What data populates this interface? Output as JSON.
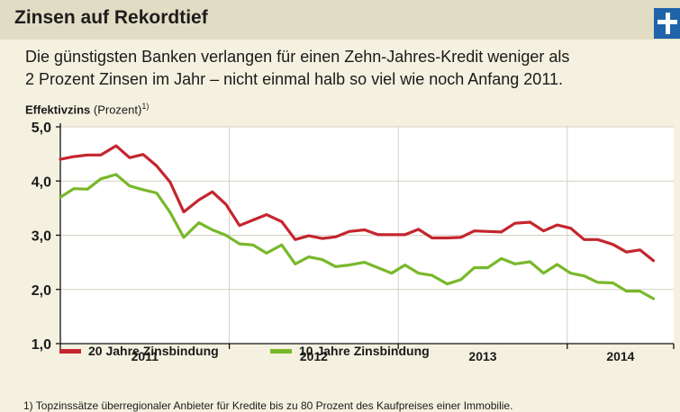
{
  "title": "Zinsen auf Rekordtief",
  "subtitle_line1": "Die günstigsten Banken verlangen für einen Zehn-Jahres-Kredit weniger als",
  "subtitle_line2": "2 Prozent Zinsen im Jahr – nicht einmal halb so viel wie noch Anfang 2011.",
  "footnote": "1) Topzinssätze überregionaler Anbieter für Kredite bis zu 80 Prozent des Kaufpreises einer Immobilie.",
  "logo_icon": "plus-icon",
  "chart_data": {
    "type": "line",
    "ylabel_bold": "Effektivzins",
    "ylabel_rest": "(Prozent)",
    "ylabel_note": "1)",
    "ylim": [
      1.0,
      5.0
    ],
    "yticks": [
      "5,0",
      "4,0",
      "3,0",
      "2,0",
      "1,0"
    ],
    "ytick_values": [
      5,
      4,
      3,
      2,
      1
    ],
    "year_labels": [
      "2011",
      "2012",
      "2013",
      "2014"
    ],
    "x_start": 2011.0,
    "x_end": 2014.63,
    "year_boundaries": [
      2012,
      2013,
      2014
    ],
    "grid": true,
    "series": [
      {
        "name": "20 Jahre Zinsbindung",
        "color": "#c4262e",
        "points": [
          [
            2011.0,
            4.4
          ],
          [
            2011.08,
            4.45
          ],
          [
            2011.16,
            4.48
          ],
          [
            2011.24,
            4.48
          ],
          [
            2011.33,
            4.65
          ],
          [
            2011.41,
            4.43
          ],
          [
            2011.49,
            4.49
          ],
          [
            2011.57,
            4.28
          ],
          [
            2011.65,
            3.98
          ],
          [
            2011.73,
            3.43
          ],
          [
            2011.82,
            3.65
          ],
          [
            2011.9,
            3.8
          ],
          [
            2011.98,
            3.57
          ],
          [
            2012.06,
            3.18
          ],
          [
            2012.14,
            3.28
          ],
          [
            2012.22,
            3.38
          ],
          [
            2012.31,
            3.25
          ],
          [
            2012.39,
            2.92
          ],
          [
            2012.47,
            2.99
          ],
          [
            2012.55,
            2.94
          ],
          [
            2012.63,
            2.97
          ],
          [
            2012.71,
            3.07
          ],
          [
            2012.8,
            3.1
          ],
          [
            2012.88,
            3.01
          ],
          [
            2012.96,
            3.01
          ],
          [
            2013.04,
            3.01
          ],
          [
            2013.12,
            3.11
          ],
          [
            2013.2,
            2.95
          ],
          [
            2013.29,
            2.95
          ],
          [
            2013.37,
            2.96
          ],
          [
            2013.45,
            3.08
          ],
          [
            2013.53,
            3.07
          ],
          [
            2013.61,
            3.06
          ],
          [
            2013.69,
            3.22
          ],
          [
            2013.78,
            3.24
          ],
          [
            2013.86,
            3.08
          ],
          [
            2013.94,
            3.19
          ],
          [
            2014.02,
            3.13
          ],
          [
            2014.1,
            2.92
          ],
          [
            2014.18,
            2.92
          ],
          [
            2014.27,
            2.83
          ],
          [
            2014.35,
            2.69
          ],
          [
            2014.43,
            2.73
          ],
          [
            2014.51,
            2.53
          ]
        ]
      },
      {
        "name": "10 Jahre Zinsbindung",
        "color": "#78b82a",
        "points": [
          [
            2011.0,
            3.7
          ],
          [
            2011.08,
            3.86
          ],
          [
            2011.16,
            3.85
          ],
          [
            2011.24,
            4.04
          ],
          [
            2011.33,
            4.12
          ],
          [
            2011.41,
            3.91
          ],
          [
            2011.49,
            3.84
          ],
          [
            2011.57,
            3.78
          ],
          [
            2011.65,
            3.42
          ],
          [
            2011.73,
            2.96
          ],
          [
            2011.82,
            3.23
          ],
          [
            2011.9,
            3.1
          ],
          [
            2011.98,
            3.0
          ],
          [
            2012.06,
            2.84
          ],
          [
            2012.14,
            2.82
          ],
          [
            2012.22,
            2.67
          ],
          [
            2012.31,
            2.82
          ],
          [
            2012.39,
            2.47
          ],
          [
            2012.47,
            2.6
          ],
          [
            2012.55,
            2.55
          ],
          [
            2012.63,
            2.42
          ],
          [
            2012.71,
            2.45
          ],
          [
            2012.8,
            2.5
          ],
          [
            2012.88,
            2.4
          ],
          [
            2012.96,
            2.3
          ],
          [
            2013.04,
            2.45
          ],
          [
            2013.12,
            2.3
          ],
          [
            2013.2,
            2.26
          ],
          [
            2013.29,
            2.1
          ],
          [
            2013.37,
            2.18
          ],
          [
            2013.45,
            2.4
          ],
          [
            2013.53,
            2.4
          ],
          [
            2013.61,
            2.57
          ],
          [
            2013.69,
            2.47
          ],
          [
            2013.78,
            2.51
          ],
          [
            2013.86,
            2.3
          ],
          [
            2013.94,
            2.46
          ],
          [
            2014.02,
            2.3
          ],
          [
            2014.1,
            2.25
          ],
          [
            2014.18,
            2.13
          ],
          [
            2014.27,
            2.12
          ],
          [
            2014.35,
            1.97
          ],
          [
            2014.43,
            1.97
          ],
          [
            2014.51,
            1.83
          ]
        ]
      }
    ]
  }
}
